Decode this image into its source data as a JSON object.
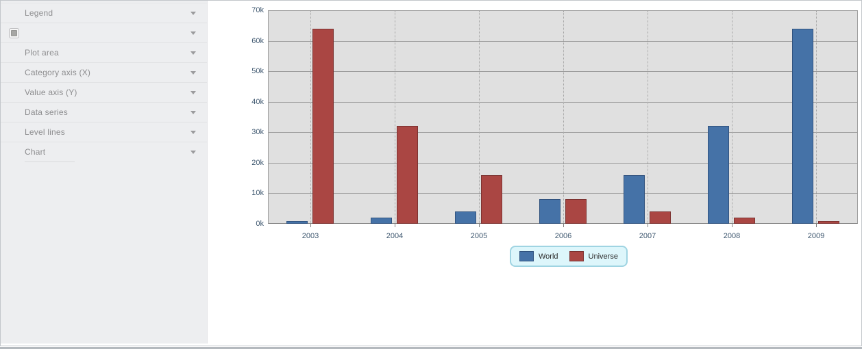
{
  "sidebar": {
    "items": [
      {
        "id": "legend",
        "label": "Legend",
        "icon": "chevron-down"
      },
      {
        "id": "style-swatch",
        "label": "",
        "icon": "chevron-down",
        "left_icon": "style-swatch"
      },
      {
        "id": "plot-area",
        "label": "Plot area",
        "icon": "chevron-down"
      },
      {
        "id": "category-axis-x",
        "label": "Category axis (X)",
        "icon": "chevron-down"
      },
      {
        "id": "value-axis-y",
        "label": "Value axis (Y)",
        "icon": "chevron-down"
      },
      {
        "id": "data-series",
        "label": "Data series",
        "icon": "chevron-down"
      },
      {
        "id": "level-lines",
        "label": "Level lines",
        "icon": "chevron-down"
      },
      {
        "id": "chart",
        "label": "Chart",
        "icon": "chevron-down"
      }
    ]
  },
  "icons": {
    "chevron-down": "▾",
    "style-swatch": "▣"
  },
  "chart_data": {
    "type": "bar",
    "title": "",
    "xlabel": "",
    "ylabel": "",
    "categories": [
      "2003",
      "2004",
      "2005",
      "2006",
      "2007",
      "2008",
      "2009"
    ],
    "series": [
      {
        "name": "World",
        "color": "#4572a7",
        "border_color": "#31537f",
        "values": [
          1000,
          2000,
          4000,
          8000,
          16000,
          32000,
          64000
        ]
      },
      {
        "name": "Universe",
        "color": "#aa4643",
        "border_color": "#7c3230",
        "values": [
          64000,
          32000,
          16000,
          8000,
          4000,
          2000,
          1000
        ]
      }
    ],
    "ylim": [
      0,
      70000
    ],
    "y_tick_step": 10000,
    "y_tick_labels": [
      "0k",
      "10k",
      "20k",
      "30k",
      "40k",
      "50k",
      "60k",
      "70k"
    ],
    "grid": true,
    "gridlines_horizontal": "solid",
    "gridlines_vertical": "dotted-at-category-centers",
    "legend_position": "bottom-center"
  },
  "colors": {
    "sidebar_bg": "#edeef0",
    "sidebar_text": "#8c8c8e",
    "plot_bg": "#e0e0e0",
    "gridline": "#9c9c9c",
    "axis_line": "#7f7f7f",
    "axis_label": "#3e576f",
    "series_world": "#4572a7",
    "series_universe": "#aa4643",
    "legend_bg": "#ddf6fb",
    "legend_border": "#9fd4e2"
  }
}
